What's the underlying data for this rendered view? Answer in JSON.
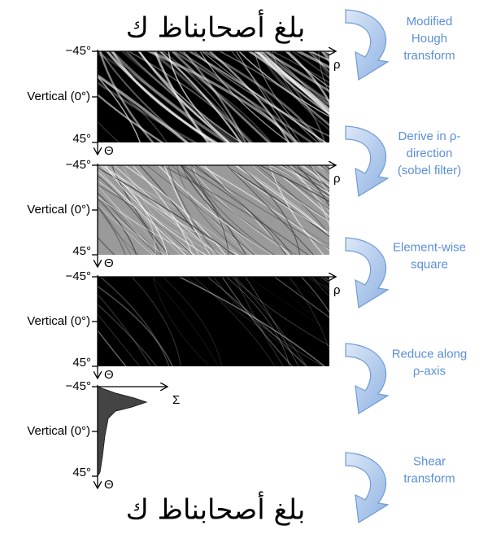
{
  "top_word": "بلغ أصحابناظ ك",
  "panels": [
    {
      "top_label": "−45°",
      "middle_label": "Vertical (0°)",
      "bottom_label": "45°",
      "x_axis_label": "ρ",
      "y_axis_label": "Θ"
    },
    {
      "top_label": "−45°",
      "middle_label": "Vertical (0°)",
      "bottom_label": "45°",
      "x_axis_label": "ρ",
      "y_axis_label": "Θ"
    },
    {
      "top_label": "−45°",
      "middle_label": "Vertical (0°)",
      "bottom_label": "45°",
      "x_axis_label": "ρ",
      "y_axis_label": "Θ"
    },
    {
      "top_label": "−45°",
      "middle_label": "Vertical (0°)",
      "bottom_label": "45°",
      "x_axis_label": "Σ",
      "y_axis_label": "Θ"
    }
  ],
  "steps": [
    {
      "lines": [
        "Modified",
        "Hough",
        "transform"
      ]
    },
    {
      "lines": [
        "Derive in ρ-",
        "direction",
        "(sobel filter)"
      ]
    },
    {
      "lines": [
        "Element-wise",
        "square"
      ]
    },
    {
      "lines": [
        "Reduce along",
        "ρ-axis"
      ]
    },
    {
      "lines": [
        "Shear",
        "transform"
      ]
    }
  ],
  "bottom_word": "بلغ أصحابناظ ك"
}
